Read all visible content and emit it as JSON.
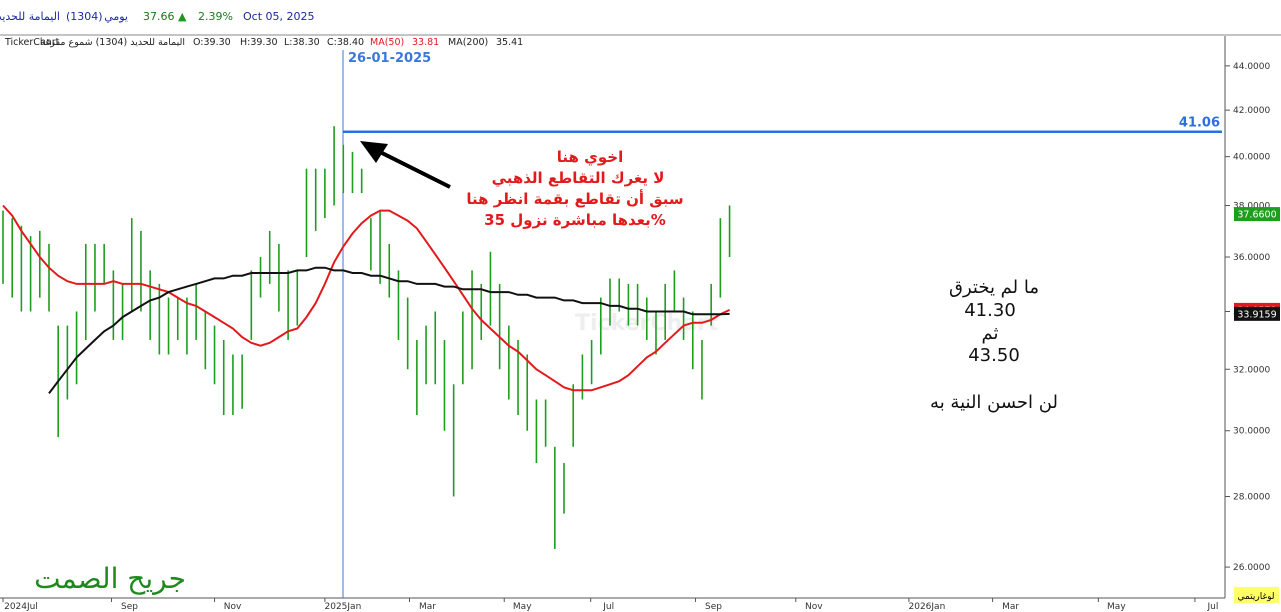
{
  "header": {
    "name": "اليمامة للحديد",
    "code": "(1304)",
    "period": "يومي",
    "price": "37.66",
    "arrow": "▲",
    "change": "2.39%",
    "date": "Oct 05, 2025"
  },
  "chart_data": {
    "type": "hilo",
    "title": "TickerChart",
    "subtitle": "اليمامة للحديد (1304) شموع مفرغة",
    "readout": [
      "O:39.30",
      "H:39.30",
      "L:38.30",
      "C:38.40"
    ],
    "color": "#1e9e1e",
    "high": [
      37.8,
      37.5,
      37.2,
      36.8,
      37.0,
      36.5,
      33.5,
      33.5,
      34.0,
      36.5,
      36.5,
      36.5,
      35.5,
      35.0,
      37.5,
      37.0,
      35.5,
      35.0,
      34.5,
      34.5,
      34.5,
      35.0,
      34.0,
      33.5,
      33.0,
      32.5,
      32.5,
      35.5,
      36.0,
      37.0,
      36.5,
      35.5,
      35.5,
      39.5,
      39.5,
      39.5,
      41.3,
      40.5,
      40.2,
      39.5,
      37.5,
      37.8,
      36.5,
      35.5,
      34.5,
      33.0,
      33.5,
      34.0,
      33.0,
      31.5,
      34.0,
      35.5,
      35.0,
      36.2,
      35.0,
      33.5,
      33.0,
      32.5,
      31.0,
      31.0,
      29.5,
      29.0,
      31.5,
      32.5,
      33.0,
      34.5,
      35.2,
      35.2,
      35.0,
      35.0,
      34.5,
      34.0,
      35.0,
      35.5,
      34.5,
      34.0,
      33.0,
      35.0,
      37.5,
      38.0
    ],
    "low": [
      35.0,
      34.5,
      34.0,
      34.0,
      34.5,
      34.0,
      29.8,
      31.0,
      31.5,
      33.0,
      34.0,
      35.0,
      33.0,
      33.0,
      34.0,
      34.0,
      33.0,
      32.5,
      32.5,
      33.0,
      32.5,
      33.0,
      32.0,
      31.5,
      30.5,
      30.5,
      30.7,
      33.0,
      34.5,
      35.0,
      34.0,
      33.0,
      33.5,
      36.0,
      37.0,
      37.5,
      38.0,
      38.5,
      38.5,
      38.5,
      35.5,
      35.0,
      34.5,
      33.0,
      32.0,
      30.5,
      31.5,
      31.5,
      30.0,
      28.0,
      31.5,
      32.0,
      33.0,
      33.5,
      32.0,
      31.0,
      30.5,
      30.0,
      29.0,
      29.5,
      26.5,
      27.5,
      29.5,
      31.0,
      31.5,
      32.5,
      33.5,
      34.0,
      33.5,
      33.5,
      33.0,
      32.5,
      33.0,
      34.0,
      33.0,
      32.0,
      31.0,
      33.5,
      34.5,
      36.0
    ],
    "last_close": {
      "value": 37.66,
      "label": "37.6600"
    },
    "series": [
      {
        "name": "MA(50)",
        "readout": 33.81,
        "color": "#e31a1c",
        "values": [
          38.0,
          37.6,
          37.0,
          36.5,
          36.0,
          35.6,
          35.3,
          35.1,
          35.0,
          35.0,
          35.0,
          35.0,
          35.1,
          35.0,
          35.0,
          35.0,
          34.9,
          34.8,
          34.7,
          34.5,
          34.3,
          34.2,
          34.0,
          33.8,
          33.6,
          33.4,
          33.1,
          32.9,
          32.8,
          32.9,
          33.1,
          33.3,
          33.4,
          33.8,
          34.3,
          35.0,
          35.8,
          36.4,
          36.9,
          37.3,
          37.6,
          37.8,
          37.8,
          37.6,
          37.4,
          37.1,
          36.6,
          36.1,
          35.6,
          35.1,
          34.6,
          34.1,
          33.7,
          33.4,
          33.1,
          32.8,
          32.6,
          32.3,
          32.0,
          31.8,
          31.6,
          31.4,
          31.3,
          31.3,
          31.3,
          31.4,
          31.5,
          31.6,
          31.8,
          32.1,
          32.4,
          32.6,
          32.9,
          33.2,
          33.5,
          33.6,
          33.6,
          33.7,
          33.9,
          34.0572
        ]
      },
      {
        "name": "MA(200)",
        "readout": 35.41,
        "color": "#111111",
        "values": [
          null,
          null,
          null,
          null,
          null,
          31.2,
          31.6,
          32.0,
          32.4,
          32.7,
          33.0,
          33.3,
          33.5,
          33.8,
          34.0,
          34.2,
          34.4,
          34.5,
          34.7,
          34.8,
          34.9,
          35.0,
          35.1,
          35.2,
          35.2,
          35.3,
          35.3,
          35.4,
          35.4,
          35.4,
          35.4,
          35.4,
          35.5,
          35.5,
          35.6,
          35.6,
          35.5,
          35.5,
          35.4,
          35.4,
          35.3,
          35.3,
          35.2,
          35.1,
          35.1,
          35.0,
          35.0,
          35.0,
          34.9,
          34.9,
          34.8,
          34.8,
          34.8,
          34.7,
          34.7,
          34.7,
          34.6,
          34.6,
          34.5,
          34.5,
          34.5,
          34.4,
          34.4,
          34.3,
          34.3,
          34.3,
          34.2,
          34.2,
          34.1,
          34.1,
          34.0,
          34.0,
          34.0,
          34.0,
          34.0,
          33.9,
          33.9,
          33.9,
          33.9,
          33.9159
        ]
      }
    ],
    "log_scale": true,
    "scale_label": "لوغاريتمي",
    "ylim": [
      25.17,
      45.4
    ],
    "yticks": [
      {
        "value": 26,
        "label": "26.0000"
      },
      {
        "value": 28,
        "label": "28.0000"
      },
      {
        "value": 30,
        "label": "30.0000"
      },
      {
        "value": 32,
        "label": "32.0000"
      },
      {
        "value": 34,
        "label": "34.0000"
      },
      {
        "value": 36,
        "label": "36.0000"
      },
      {
        "value": 38,
        "label": "38.0000"
      },
      {
        "value": 40,
        "label": "40.0000"
      },
      {
        "value": 42,
        "label": "42.0000"
      },
      {
        "value": 44,
        "label": "44.0000"
      }
    ],
    "xlim": [
      0,
      132
    ],
    "xticks": [
      {
        "value": 0,
        "label": "2024Jul"
      },
      {
        "value": 11.8,
        "label": "Sep"
      },
      {
        "value": 23,
        "label": "Nov"
      },
      {
        "value": 35,
        "label": "2025Jan"
      },
      {
        "value": 44.2,
        "label": "Mar"
      },
      {
        "value": 54.5,
        "label": "May"
      },
      {
        "value": 63.9,
        "label": "Jul"
      },
      {
        "value": 75.3,
        "label": "Sep"
      },
      {
        "value": 86.2,
        "label": "Nov"
      },
      {
        "value": 98.5,
        "label": "2026Jan"
      },
      {
        "value": 107.6,
        "label": "Mar"
      },
      {
        "value": 119.1,
        "label": "May"
      },
      {
        "value": 129.6,
        "label": "Jul"
      }
    ],
    "hline": 41.06,
    "vline_label": "26-01-2025",
    "note_red": [
      "اخوي هنا",
      "لا يغرك التقاطع الذهبي",
      "سبق أن تقاطع بقمة انظر هنا",
      "بعدها مباشرة نزول 35%"
    ],
    "note_black": [
      "ما لم يخترق",
      "41.30",
      "ثم",
      "43.50",
      "لن احسن النية به"
    ],
    "watermark": "جريح الصمت"
  }
}
